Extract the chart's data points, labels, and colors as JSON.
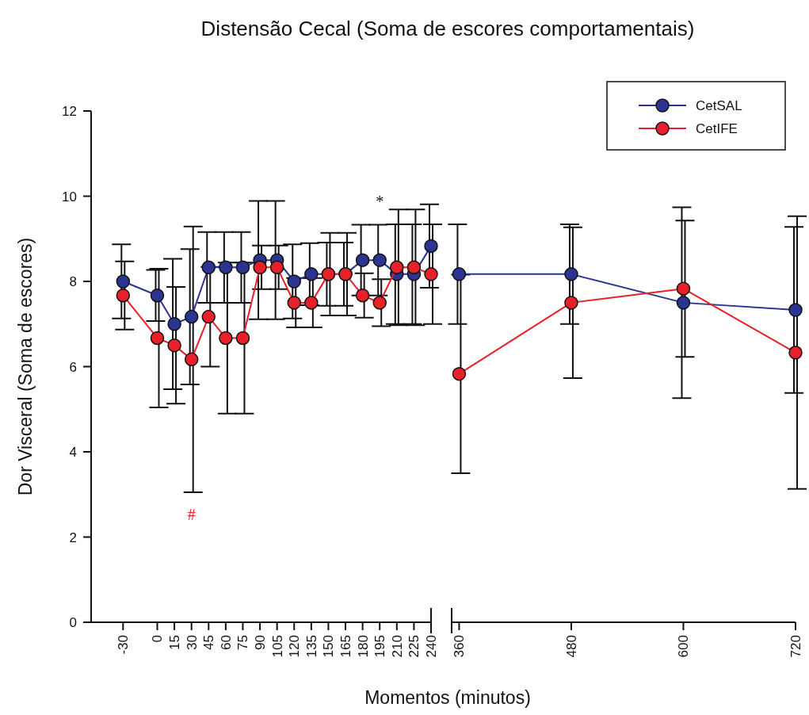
{
  "chart_data": [
    {
      "type": "line",
      "title": "Distensão Cecal (Soma de escores comportamentais)",
      "xlabel": "Momentos (minutos)",
      "ylabel": "Dor Visceral (Soma de escores)",
      "x": [
        -30,
        0,
        15,
        30,
        45,
        60,
        75,
        90,
        105,
        120,
        135,
        150,
        165,
        180,
        195,
        210,
        225,
        240
      ],
      "xlim": [
        -58,
        240
      ],
      "xticks": [
        -30,
        0,
        15,
        30,
        45,
        60,
        75,
        90,
        105,
        120,
        135,
        150,
        165,
        180,
        195,
        210,
        225,
        240
      ],
      "ylim": [
        0,
        12
      ],
      "yticks": [
        0,
        2,
        4,
        6,
        8,
        10,
        12
      ],
      "marker": "circle",
      "line_style": "solid",
      "legend": false,
      "series": [
        {
          "color": "#2b3490",
          "values": [
            8.0,
            7.67,
            7.0,
            7.17,
            8.33,
            8.33,
            8.33,
            8.5,
            8.5,
            8.0,
            8.17,
            8.17,
            8.17,
            8.5,
            8.5,
            8.17,
            8.17,
            8.83
          ],
          "errors": [
            0.87,
            0.6,
            1.53,
            1.59,
            0.83,
            0.83,
            0.83,
            1.39,
            1.39,
            0.87,
            0.73,
            0.74,
            0.74,
            0.83,
            0.83,
            1.17,
            1.17,
            0.98
          ]
        },
        {
          "color": "#e8202a",
          "values": [
            7.67,
            6.67,
            6.5,
            6.17,
            7.17,
            6.67,
            6.67,
            8.33,
            8.33,
            7.5,
            7.5,
            8.17,
            8.17,
            7.67,
            7.5,
            8.33,
            8.33,
            8.17
          ],
          "errors": [
            0.8,
            1.63,
            1.37,
            3.12,
            1.17,
            1.77,
            1.77,
            0.51,
            0.51,
            0.58,
            0.58,
            0.97,
            0.97,
            0.52,
            0.55,
            1.36,
            1.36,
            1.17
          ]
        }
      ],
      "annotations": [
        "#",
        "*"
      ]
    },
    {
      "type": "line",
      "x": [
        360,
        480,
        600,
        720
      ],
      "xlim": [
        352,
        720
      ],
      "xticks": [
        360,
        480,
        600,
        720
      ],
      "ylim": [
        0,
        12
      ],
      "tick_labels": "x",
      "marker": "circle",
      "line_style": "solid",
      "legend": "top right",
      "series": [
        {
          "name": "CetSAL",
          "color": "#2b3490",
          "values": [
            8.17,
            8.17,
            7.5,
            7.33
          ],
          "errors": [
            1.17,
            1.17,
            2.24,
            1.95
          ]
        },
        {
          "name": "CetIFE",
          "color": "#e8202a",
          "values": [
            5.83,
            7.5,
            7.83,
            6.33
          ],
          "errors": [
            2.33,
            1.77,
            1.6,
            3.2
          ]
        }
      ]
    }
  ]
}
